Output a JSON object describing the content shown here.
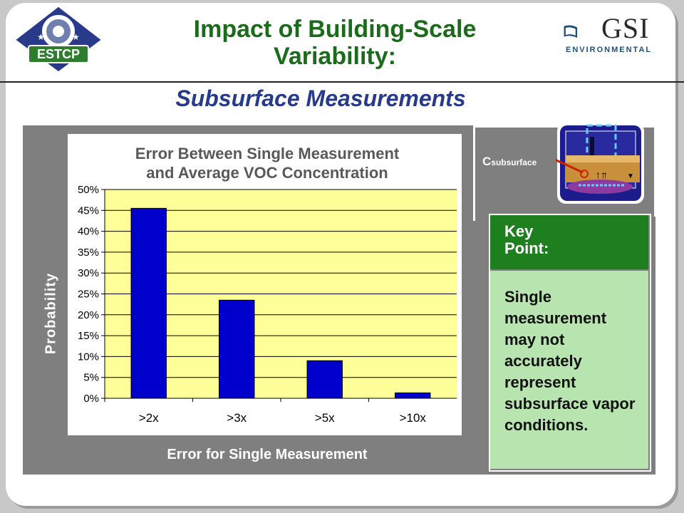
{
  "header": {
    "title_line1": "Impact of Building-Scale",
    "title_line2": "Variability:",
    "subtitle": "Subsurface Measurements",
    "logo_left_text": "ESTCP",
    "logo_right_text": "GSI",
    "logo_right_sub": "ENVIRONMENTAL"
  },
  "chart_data": {
    "type": "bar",
    "title": "Error Between Single Measurement and Average VOC Concentration",
    "title_line1": "Error Between Single Measurement",
    "title_line2": "and Average VOC Concentration",
    "xlabel": "Error for Single Measurement",
    "ylabel": "Probability",
    "categories": [
      ">2x",
      ">3x",
      ">5x",
      ">10x"
    ],
    "values": [
      0.455,
      0.235,
      0.09,
      0.013
    ],
    "ylim": [
      0,
      0.5
    ],
    "yticks": [
      0,
      0.05,
      0.1,
      0.15,
      0.2,
      0.25,
      0.3,
      0.35,
      0.4,
      0.45,
      0.5
    ],
    "ytick_labels": [
      "0%",
      "5%",
      "10%",
      "15%",
      "20%",
      "25%",
      "30%",
      "35%",
      "40%",
      "45%",
      "50%"
    ],
    "grid": true,
    "colors": {
      "bar": "#0000cc",
      "plot_bg": "#ffff99",
      "frame_bg": "#7f7f7f"
    }
  },
  "diagram": {
    "label_main": "C",
    "label_sub": "subsurface"
  },
  "key_point": {
    "title": "Key Point:",
    "text": "Single measurement may not accurately represent subsurface vapor conditions.",
    "colors": {
      "header": "#1e7f1e",
      "body": "#b8e4b0"
    }
  }
}
